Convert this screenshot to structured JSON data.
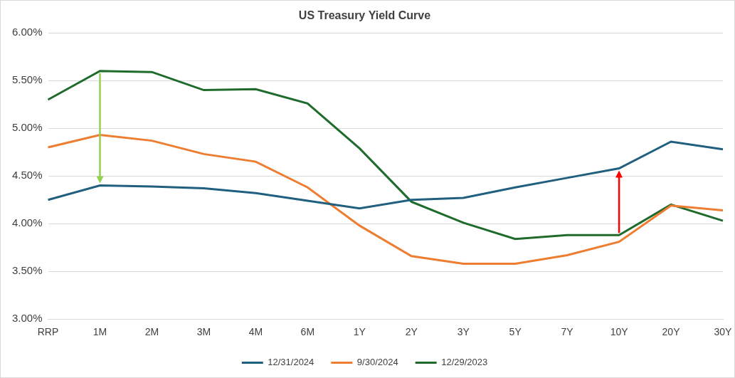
{
  "chart_data": {
    "type": "line",
    "title": "US Treasury Yield Curve",
    "categories": [
      "RRP",
      "1M",
      "2M",
      "3M",
      "4M",
      "6M",
      "1Y",
      "2Y",
      "3Y",
      "5Y",
      "7Y",
      "10Y",
      "20Y",
      "30Y"
    ],
    "series": [
      {
        "name": "12/31/2024",
        "color": "#215f7e",
        "marker": "none",
        "line_style": "solid",
        "values": [
          4.25,
          4.4,
          4.39,
          4.37,
          4.32,
          4.24,
          4.16,
          4.25,
          4.27,
          4.38,
          4.48,
          4.58,
          4.86,
          4.78
        ]
      },
      {
        "name": "9/30/2024",
        "color": "#ed7d31",
        "marker": "none",
        "line_style": "solid",
        "values": [
          4.8,
          4.93,
          4.87,
          4.73,
          4.65,
          4.38,
          3.98,
          3.66,
          3.58,
          3.58,
          3.67,
          3.81,
          4.19,
          4.14
        ]
      },
      {
        "name": "12/29/2023",
        "color": "#1e6b2c",
        "marker": "none",
        "line_style": "solid",
        "values": [
          5.3,
          5.6,
          5.59,
          5.4,
          5.41,
          5.26,
          4.79,
          4.23,
          4.01,
          3.84,
          3.88,
          3.88,
          4.2,
          4.03
        ]
      }
    ],
    "ylim": [
      3,
      6
    ],
    "yticks": [
      {
        "value": 3,
        "label": "3.00%"
      },
      {
        "value": 3.5,
        "label": "3.50%"
      },
      {
        "value": 4,
        "label": "4.00%"
      },
      {
        "value": 4.5,
        "label": "4.50%"
      },
      {
        "value": 5,
        "label": "5.00%"
      },
      {
        "value": 5.5,
        "label": "5.50%"
      },
      {
        "value": 6,
        "label": "6.00%"
      }
    ],
    "grid": true,
    "legend": "bottom"
  }
}
